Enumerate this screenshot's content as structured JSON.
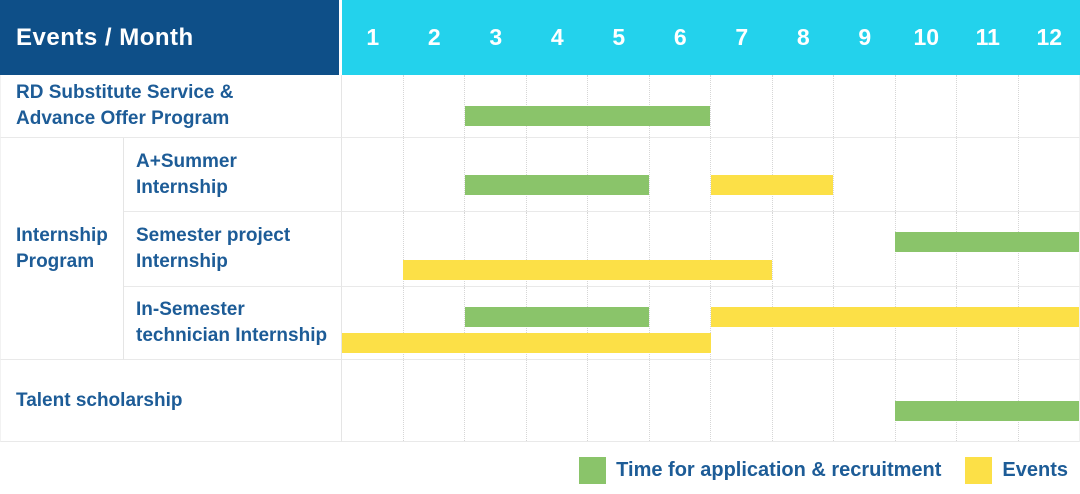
{
  "header": {
    "title": "Events / Month",
    "months": [
      "1",
      "2",
      "3",
      "4",
      "5",
      "6",
      "7",
      "8",
      "9",
      "10",
      "11",
      "12"
    ]
  },
  "group_label": "Internship\nProgram",
  "rows": [
    {
      "label": "RD Substitute Service &\nAdvance Offer Program",
      "group": null,
      "bars": [
        {
          "kind": "application",
          "start": 3,
          "end": 6,
          "lane": "single"
        }
      ]
    },
    {
      "label": "A+Summer\nInternship",
      "group": "Internship Program",
      "bars": [
        {
          "kind": "application",
          "start": 3,
          "end": 5,
          "lane": "single"
        },
        {
          "kind": "events",
          "start": 7,
          "end": 8,
          "lane": "single"
        }
      ]
    },
    {
      "label": "Semester project\nInternship",
      "group": "Internship Program",
      "bars": [
        {
          "kind": "application",
          "start": 10,
          "end": 12,
          "lane": "top"
        },
        {
          "kind": "events",
          "start": 2,
          "end": 7,
          "lane": "bottom"
        }
      ]
    },
    {
      "label": "In-Semester\ntechnician Internship",
      "group": "Internship Program",
      "bars": [
        {
          "kind": "application",
          "start": 3,
          "end": 5,
          "lane": "top"
        },
        {
          "kind": "events",
          "start": 7,
          "end": 12,
          "lane": "top"
        },
        {
          "kind": "events",
          "start": 1,
          "end": 6,
          "lane": "bottom"
        }
      ]
    },
    {
      "label": "Talent scholarship",
      "group": null,
      "bars": [
        {
          "kind": "application",
          "start": 10,
          "end": 12,
          "lane": "single"
        }
      ]
    }
  ],
  "legend": {
    "items": [
      {
        "kind": "application",
        "label": "Time for application & recruitment"
      },
      {
        "kind": "events",
        "label": "Events"
      }
    ]
  },
  "colors": {
    "header_bg": "#0e4f88",
    "months_bg": "#23d2ec",
    "label_text": "#1d5c97",
    "application": "#8ac46a",
    "events": "#fce047",
    "grid_line": "#e9e9e9",
    "grid_dotted": "#d6d6d6"
  },
  "chart_data": {
    "type": "gantt",
    "title": "Events / Month",
    "x_axis": {
      "label": "Month",
      "ticks": [
        1,
        2,
        3,
        4,
        5,
        6,
        7,
        8,
        9,
        10,
        11,
        12
      ],
      "range": [
        1,
        12
      ]
    },
    "grid": "dotted monthly columns",
    "legend_position": "bottom-right",
    "series_legend": {
      "application": "Time for application & recruitment",
      "events": "Events"
    },
    "tasks": [
      {
        "name": "RD Substitute Service & Advance Offer Program",
        "group": null,
        "application_recruitment_months": [
          [
            3,
            6
          ]
        ],
        "events_months": []
      },
      {
        "name": "A+Summer Internship",
        "group": "Internship Program",
        "application_recruitment_months": [
          [
            3,
            5
          ]
        ],
        "events_months": [
          [
            7,
            8
          ]
        ]
      },
      {
        "name": "Semester project Internship",
        "group": "Internship Program",
        "application_recruitment_months": [
          [
            10,
            12
          ]
        ],
        "events_months": [
          [
            2,
            7
          ]
        ]
      },
      {
        "name": "In-Semester technician Internship",
        "group": "Internship Program",
        "application_recruitment_months": [
          [
            3,
            5
          ]
        ],
        "events_months": [
          [
            7,
            12
          ],
          [
            1,
            6
          ]
        ]
      },
      {
        "name": "Talent scholarship",
        "group": null,
        "application_recruitment_months": [
          [
            10,
            12
          ]
        ],
        "events_months": []
      }
    ]
  }
}
